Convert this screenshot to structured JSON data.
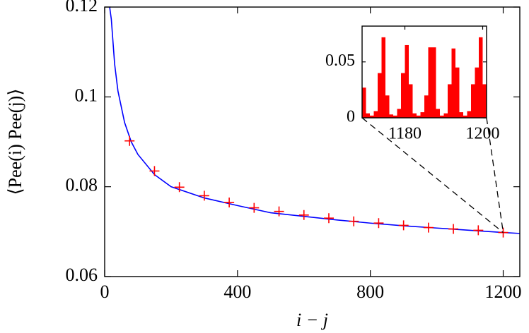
{
  "chart_data": [
    {
      "type": "line",
      "xlabel": "i − j",
      "ylabel": "⟨Pee(i) Pee(j)⟩",
      "xlim": [
        0,
        1250
      ],
      "ylim": [
        0.06,
        0.12
      ],
      "xticks": [
        0,
        400,
        800,
        1200
      ],
      "yticks": [
        0.06,
        0.08,
        0.1,
        0.12
      ],
      "series": [
        {
          "style": "line",
          "color": "#0000ff",
          "x": [
            15,
            20,
            30,
            40,
            60,
            80,
            100,
            150,
            200,
            300,
            400,
            500,
            600,
            700,
            800,
            900,
            1000,
            1100,
            1200,
            1250
          ],
          "values": [
            0.12,
            0.1173,
            0.1073,
            0.1013,
            0.0943,
            0.09,
            0.0872,
            0.0827,
            0.08,
            0.0775,
            0.0758,
            0.0742,
            0.0734,
            0.0726,
            0.0719,
            0.0713,
            0.0708,
            0.0703,
            0.0698,
            0.0696
          ]
        },
        {
          "style": "markers",
          "color": "#ff0000",
          "x": [
            75,
            150,
            225,
            300,
            375,
            450,
            525,
            600,
            675,
            750,
            825,
            900,
            975,
            1050,
            1125,
            1200
          ],
          "values": [
            0.0902,
            0.0835,
            0.0799,
            0.078,
            0.0765,
            0.0753,
            0.0745,
            0.0737,
            0.073,
            0.0723,
            0.0719,
            0.0714,
            0.0709,
            0.0706,
            0.0703,
            0.0698
          ]
        }
      ]
    },
    {
      "type": "bar",
      "color": "#ff0000",
      "xlim": [
        1169,
        1201
      ],
      "ylim": [
        0,
        0.082
      ],
      "xticks": [
        1180,
        1200
      ],
      "yticks": [
        0,
        0.05
      ],
      "x": [
        1169,
        1170,
        1171,
        1172,
        1173,
        1174,
        1175,
        1176,
        1177,
        1178,
        1179,
        1180,
        1181,
        1182,
        1183,
        1184,
        1185,
        1186,
        1187,
        1188,
        1189,
        1190,
        1191,
        1192,
        1193,
        1194,
        1195,
        1196,
        1197,
        1198,
        1199,
        1200
      ],
      "values": [
        0.027,
        0.004,
        0.002,
        0.006,
        0.04,
        0.072,
        0.02,
        0.003,
        0.002,
        0.008,
        0.04,
        0.065,
        0.03,
        0.004,
        0.002,
        0.005,
        0.02,
        0.063,
        0.063,
        0.008,
        0.002,
        0.004,
        0.03,
        0.062,
        0.045,
        0.005,
        0.002,
        0.006,
        0.03,
        0.045,
        0.072,
        0.03
      ]
    }
  ]
}
